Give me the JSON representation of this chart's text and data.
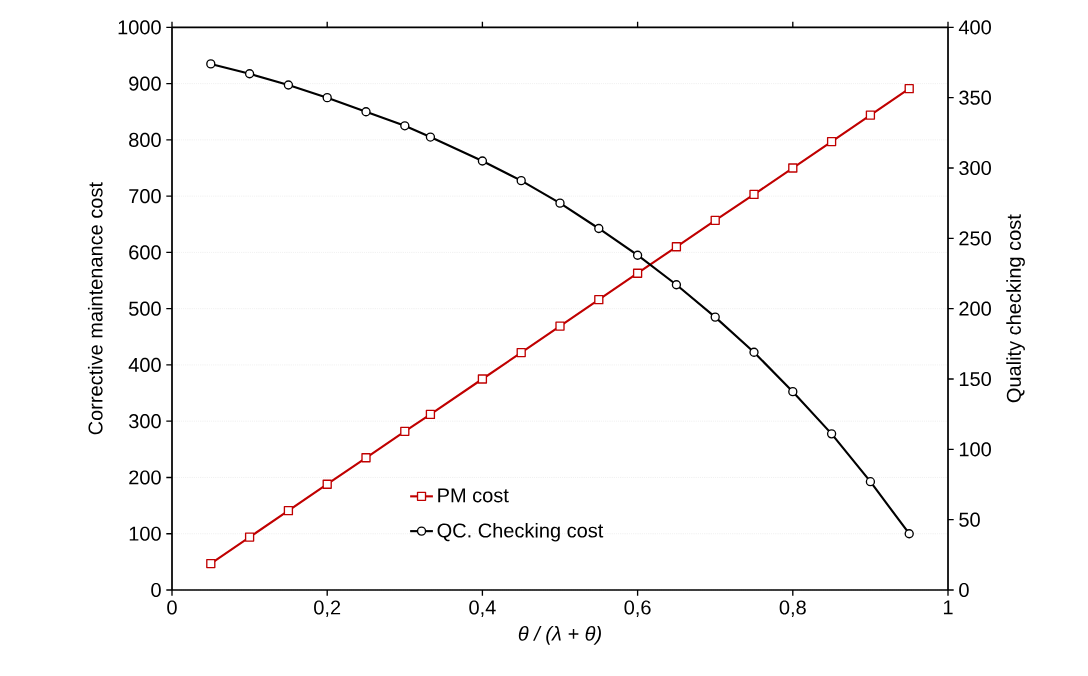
{
  "chart_data": {
    "type": "line",
    "xlabel": "θ / (λ + θ)",
    "ylabel": "Corrective maintenance cost",
    "y2label": "Quality checking cost",
    "xlim": [
      0,
      1
    ],
    "xticks": [
      0,
      {
        "value": 0.2,
        "label": "0,2"
      },
      {
        "value": 0.4,
        "label": "0,4"
      },
      {
        "value": 0.6,
        "label": "0,6"
      },
      {
        "value": 0.8,
        "label": "0,8"
      },
      1
    ],
    "ylim": [
      0,
      1000
    ],
    "yticks": [
      0,
      100,
      200,
      300,
      400,
      500,
      600,
      700,
      800,
      900,
      1000
    ],
    "y2lim": [
      0,
      400
    ],
    "y2ticks": [
      0,
      50,
      100,
      150,
      200,
      250,
      300,
      350,
      400
    ],
    "grid": "y",
    "legend": "bottom",
    "series": [
      {
        "name": "PM cost",
        "color": "#c00000",
        "marker": "square",
        "x": [
          0.05,
          0.1,
          0.15,
          0.2,
          0.25,
          0.3,
          0.333,
          0.4,
          0.45,
          0.5,
          0.55,
          0.6,
          0.65,
          0.7,
          0.75,
          0.8,
          0.85,
          0.9,
          0.95
        ],
        "values": [
          47,
          94,
          141,
          188,
          235,
          282,
          312,
          375,
          422,
          469,
          516,
          563,
          610,
          657,
          703,
          750,
          797,
          844,
          891
        ]
      },
      {
        "name": "QC. Checking cost",
        "color": "#000000",
        "marker": "circle",
        "axis": "y2",
        "x": [
          0.05,
          0.1,
          0.15,
          0.2,
          0.25,
          0.3,
          0.333,
          0.4,
          0.45,
          0.5,
          0.55,
          0.6,
          0.65,
          0.7,
          0.75,
          0.8,
          0.85,
          0.9,
          0.95
        ],
        "values": [
          374,
          367,
          359,
          350,
          340,
          330,
          322,
          305,
          291,
          275,
          257,
          238,
          217,
          194,
          169,
          141,
          111,
          77,
          40
        ]
      }
    ]
  }
}
